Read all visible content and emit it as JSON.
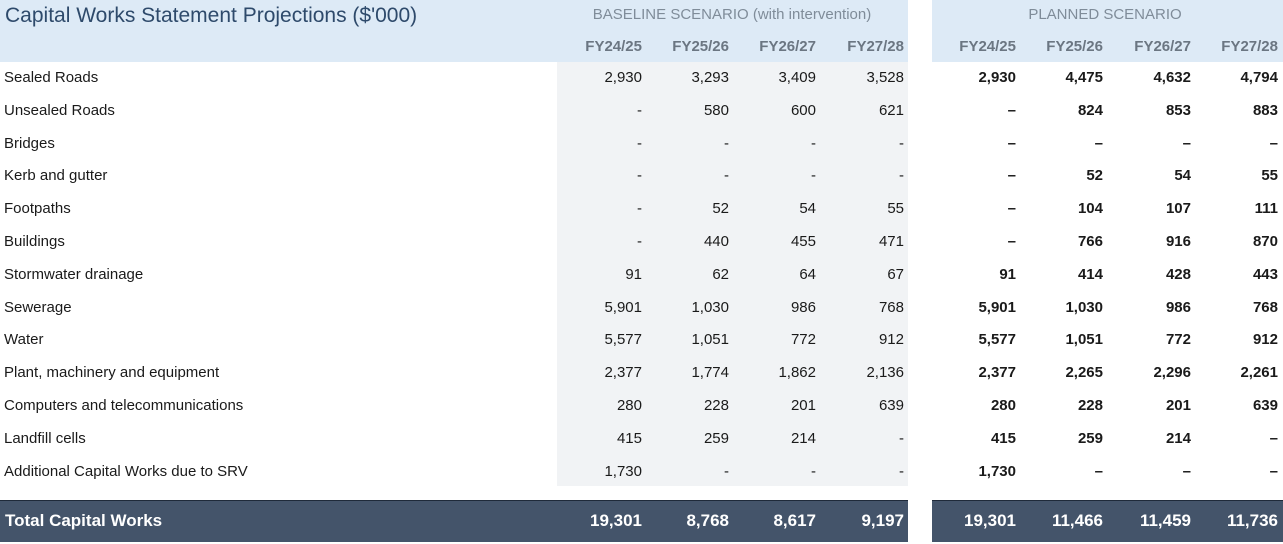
{
  "title": "Capital Works Statement Projections ($'000)",
  "baseline": {
    "label": "BASELINE SCENARIO (with intervention)",
    "years": [
      "FY24/25",
      "FY25/26",
      "FY26/27",
      "FY27/28"
    ]
  },
  "planned": {
    "label": "PLANNED SCENARIO",
    "years": [
      "FY24/25",
      "FY25/26",
      "FY26/27",
      "FY27/28"
    ]
  },
  "rows": [
    {
      "label": "Sealed Roads",
      "baseline": [
        "2,930",
        "3,293",
        "3,409",
        "3,528"
      ],
      "planned": [
        "2,930",
        "4,475",
        "4,632",
        "4,794"
      ]
    },
    {
      "label": "Unsealed Roads",
      "baseline": [
        "-",
        "580",
        "600",
        "621"
      ],
      "planned": [
        "–",
        "824",
        "853",
        "883"
      ]
    },
    {
      "label": "Bridges",
      "baseline": [
        "-",
        "-",
        "-",
        "-"
      ],
      "planned": [
        "–",
        "–",
        "–",
        "–"
      ]
    },
    {
      "label": "Kerb and gutter",
      "baseline": [
        "-",
        "-",
        "-",
        "-"
      ],
      "planned": [
        "–",
        "52",
        "54",
        "55"
      ]
    },
    {
      "label": "Footpaths",
      "baseline": [
        "-",
        "52",
        "54",
        "55"
      ],
      "planned": [
        "–",
        "104",
        "107",
        "111"
      ]
    },
    {
      "label": "Buildings",
      "baseline": [
        "-",
        "440",
        "455",
        "471"
      ],
      "planned": [
        "–",
        "766",
        "916",
        "870"
      ]
    },
    {
      "label": "Stormwater drainage",
      "baseline": [
        "91",
        "62",
        "64",
        "67"
      ],
      "planned": [
        "91",
        "414",
        "428",
        "443"
      ]
    },
    {
      "label": "Sewerage",
      "baseline": [
        "5,901",
        "1,030",
        "986",
        "768"
      ],
      "planned": [
        "5,901",
        "1,030",
        "986",
        "768"
      ]
    },
    {
      "label": "Water",
      "baseline": [
        "5,577",
        "1,051",
        "772",
        "912"
      ],
      "planned": [
        "5,577",
        "1,051",
        "772",
        "912"
      ]
    },
    {
      "label": "Plant, machinery and equipment",
      "baseline": [
        "2,377",
        "1,774",
        "1,862",
        "2,136"
      ],
      "planned": [
        "2,377",
        "2,265",
        "2,296",
        "2,261"
      ]
    },
    {
      "label": "Computers and telecommunications",
      "baseline": [
        "280",
        "228",
        "201",
        "639"
      ],
      "planned": [
        "280",
        "228",
        "201",
        "639"
      ]
    },
    {
      "label": "Landfill cells",
      "baseline": [
        "415",
        "259",
        "214",
        "-"
      ],
      "planned": [
        "415",
        "259",
        "214",
        "–"
      ]
    },
    {
      "label": "Additional Capital Works due to SRV",
      "baseline": [
        "1,730",
        "-",
        "-",
        "-"
      ],
      "planned": [
        "1,730",
        "–",
        "–",
        "–"
      ]
    }
  ],
  "total": {
    "label": "Total Capital Works",
    "baseline": [
      "19,301",
      "8,768",
      "8,617",
      "9,197"
    ],
    "planned": [
      "19,301",
      "11,466",
      "11,459",
      "11,736"
    ]
  },
  "colors": {
    "header_bg": "#ddeaf6",
    "title_color": "#2e4a6b",
    "baseline_shade": "#f1f3f5",
    "total_bg": "#44546a",
    "total_text": "#ffffff"
  }
}
